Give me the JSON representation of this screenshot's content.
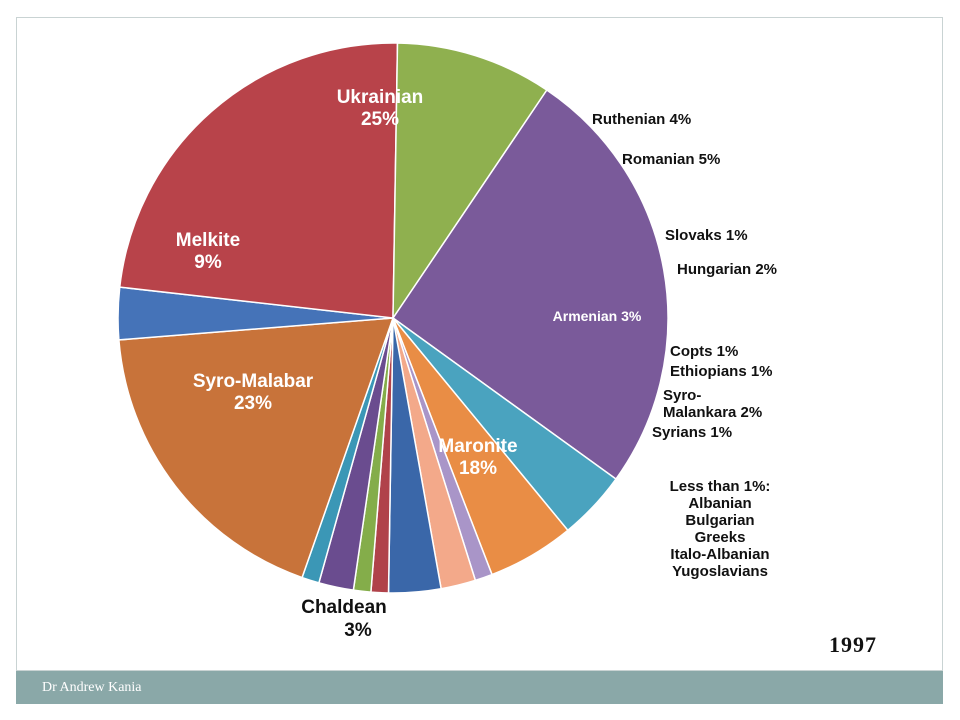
{
  "footer": {
    "author": "Dr Andrew Kania"
  },
  "year_label": "1997",
  "note": {
    "title": "Less than 1%:",
    "items": [
      "Albanian",
      "Bulgarian",
      "Greeks",
      "Italo-Albanian",
      "Yugoslavians"
    ]
  },
  "chart_data": {
    "type": "pie",
    "title": "",
    "start_clockwise_from": "top (Ukrainian)",
    "slices": [
      {
        "name": "Ukrainian",
        "label": "Ukrainian",
        "pct_label": "25%",
        "value": 25,
        "color": "#7a5a9a",
        "label_mode": "inside"
      },
      {
        "name": "Ruthenian",
        "label": "Ruthenian 4%",
        "value": 4,
        "color": "#4aa3bf",
        "label_mode": "outside"
      },
      {
        "name": "Romanian",
        "label": "Romanian 5%",
        "value": 5,
        "color": "#e98d45",
        "label_mode": "outside"
      },
      {
        "name": "Slovaks",
        "label": "Slovaks 1%",
        "value": 1,
        "color": "#a995c8",
        "label_mode": "outside"
      },
      {
        "name": "Hungarian",
        "label": "Hungarian 2%",
        "value": 2,
        "color": "#f3a98a",
        "label_mode": "outside"
      },
      {
        "name": "Armenian",
        "label": "Armenian 3%",
        "value": 3,
        "color": "#3a67a9",
        "label_mode": "inside"
      },
      {
        "name": "Copts",
        "label": "Copts 1%",
        "value": 1,
        "color": "#b0424a",
        "label_mode": "outside"
      },
      {
        "name": "Ethiopians",
        "label": "Ethiopians 1%",
        "value": 1,
        "color": "#84ad4a",
        "label_mode": "outside"
      },
      {
        "name": "Syro-Malankara",
        "label": "Syro-\nMalankara 2%",
        "value": 2,
        "color": "#6a4c8f",
        "label_mode": "outside"
      },
      {
        "name": "Syrians",
        "label": "Syrians 1%",
        "value": 1,
        "color": "#3b97b6",
        "label_mode": "outside"
      },
      {
        "name": "Maronite",
        "label": "Maronite",
        "pct_label": "18%",
        "value": 18,
        "color": "#c8733a",
        "label_mode": "inside"
      },
      {
        "name": "Chaldean",
        "label": "Chaldean",
        "pct_label": "3%",
        "value": 3,
        "color": "#4573b8",
        "label_mode": "outside"
      },
      {
        "name": "Syro-Malabar",
        "label": "Syro-Malabar",
        "pct_label": "23%",
        "value": 23,
        "color": "#b8434a",
        "label_mode": "inside"
      },
      {
        "name": "Melkite",
        "label": "Melkite",
        "pct_label": "9%",
        "value": 9,
        "color": "#8fb04f",
        "label_mode": "inside"
      }
    ]
  }
}
